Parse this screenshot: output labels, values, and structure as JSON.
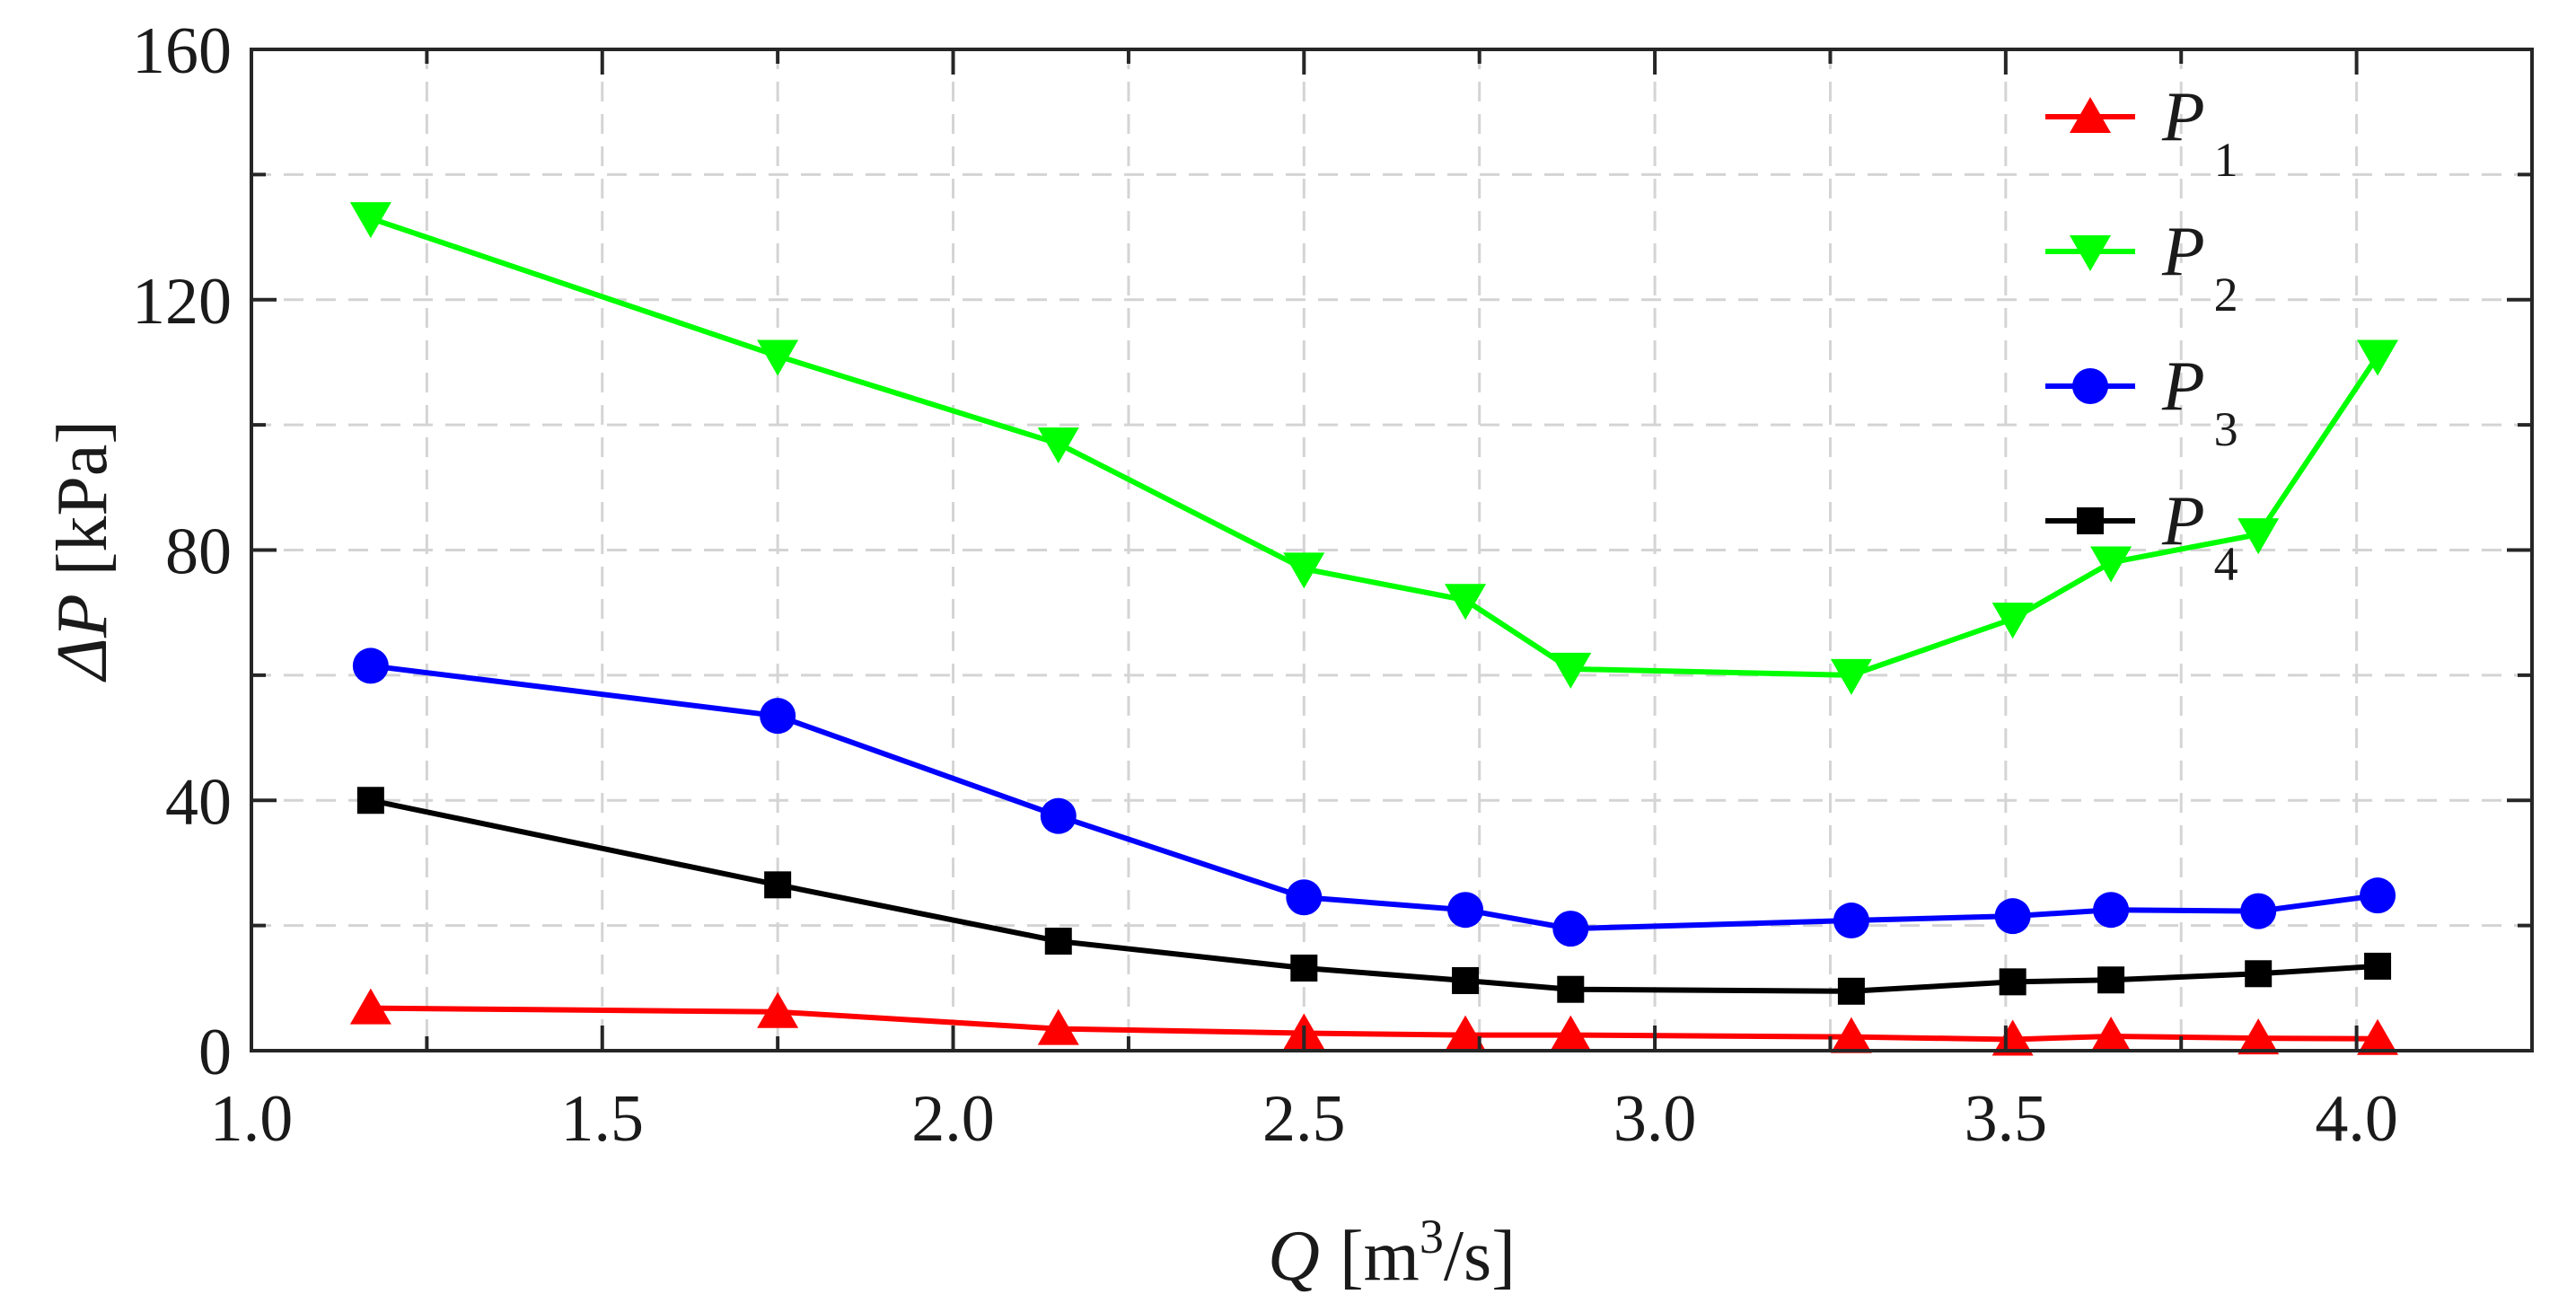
{
  "chart_data": {
    "type": "line",
    "title": "",
    "xlabel": {
      "var": "Q",
      "unit_prefix": "[m",
      "unit_sup": "3",
      "unit_suffix": "/s]"
    },
    "ylabel": {
      "var": "ΔP",
      "unit": "[kPa]"
    },
    "xlim": [
      1.0,
      4.25
    ],
    "ylim": [
      0,
      160
    ],
    "xticks": [
      1.0,
      1.5,
      2.0,
      2.5,
      3.0,
      3.5,
      4.0
    ],
    "xtick_labels": [
      "1.0",
      "1.5",
      "2.0",
      "2.5",
      "3.0",
      "3.5",
      "4.0"
    ],
    "xminor": [
      1.25,
      1.75,
      2.25,
      2.75,
      3.25,
      3.75
    ],
    "yticks": [
      0,
      40,
      80,
      120,
      160
    ],
    "ytick_labels": [
      "0",
      "40",
      "80",
      "120",
      "160"
    ],
    "yminor": [
      20,
      60,
      100,
      140
    ],
    "grid": true,
    "legend_position": "top-right",
    "x": [
      1.17,
      1.75,
      2.15,
      2.5,
      2.73,
      2.88,
      3.28,
      3.51,
      3.65,
      3.86,
      4.03
    ],
    "series": [
      {
        "name": "P",
        "sub": "1",
        "color": "#ff0000",
        "marker": "triangle-up",
        "values": [
          6.8,
          6.2,
          3.5,
          2.8,
          2.5,
          2.5,
          2.2,
          1.8,
          2.3,
          2.0,
          1.9
        ]
      },
      {
        "name": "P",
        "sub": "2",
        "color": "#00ff00",
        "marker": "triangle-down",
        "values": [
          133,
          111,
          97,
          77,
          72,
          61,
          60,
          69,
          78,
          82.5,
          111
        ]
      },
      {
        "name": "P",
        "sub": "3",
        "color": "#0000ff",
        "marker": "circle",
        "values": [
          61.5,
          53.5,
          37.5,
          24.5,
          22.5,
          19.5,
          20.8,
          21.5,
          22.5,
          22.3,
          24.8
        ]
      },
      {
        "name": "P",
        "sub": "4",
        "color": "#000000",
        "marker": "square",
        "values": [
          40,
          26.5,
          17.5,
          13.2,
          11.2,
          9.8,
          9.5,
          11,
          11.3,
          12.3,
          13.5
        ]
      }
    ]
  }
}
